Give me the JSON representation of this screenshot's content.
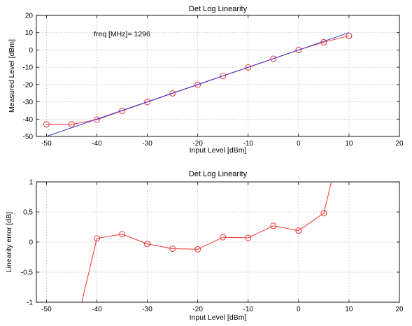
{
  "chart_data": [
    {
      "type": "line",
      "title": "Det Log Linearity",
      "xlabel": "Input Level [dBm]",
      "ylabel": "Measured Level [dBm]",
      "xlim": [
        -52,
        20
      ],
      "ylim": [
        -50,
        20
      ],
      "xticks": [
        -50,
        -40,
        -30,
        -20,
        -10,
        0,
        10,
        20
      ],
      "yticks": [
        -50,
        -40,
        -30,
        -20,
        -10,
        0,
        10,
        20
      ],
      "grid": true,
      "annotation": "freq [MHz]= 1296",
      "colors": {
        "measured": "#ee3333",
        "ideal": "#3333dd"
      },
      "series": [
        {
          "marker": "circle",
          "x": [
            -50,
            -45,
            -40,
            -35,
            -30,
            -25,
            -20,
            -15,
            -10,
            -5,
            0,
            5,
            10
          ],
          "y": [
            -43,
            -43,
            -40.3,
            -35.2,
            -30.1,
            -25.1,
            -20.1,
            -15.1,
            -10.1,
            -5.1,
            0,
            4.5,
            8.2
          ]
        },
        {
          "marker": "none",
          "x": [
            -52,
            10
          ],
          "y": [
            -52,
            10
          ]
        }
      ]
    },
    {
      "type": "line",
      "title": "Det Log Linearity",
      "xlabel": "Input Level [dBm]",
      "ylabel": "Linearity error [dB]",
      "xlim": [
        -52,
        20
      ],
      "ylim": [
        -1,
        1
      ],
      "xticks": [
        -50,
        -40,
        -30,
        -20,
        -10,
        0,
        10,
        20
      ],
      "yticks": [
        -1,
        -0.5,
        0,
        0.5,
        1
      ],
      "ytick_labels": [
        "-1",
        "-0,5",
        "0",
        "0,5",
        "1"
      ],
      "grid": true,
      "colors": {
        "measured": "#ee3333"
      },
      "series": [
        {
          "marker": "circle",
          "x": [
            -40,
            -35,
            -30,
            -25,
            -20,
            -15,
            -10,
            -5,
            0,
            5
          ],
          "y": [
            0.06,
            0.13,
            -0.03,
            -0.11,
            -0.12,
            0.08,
            0.07,
            0.27,
            0.19,
            0.48
          ]
        },
        {
          "marker": "none",
          "x": [
            -43,
            -40
          ],
          "y": [
            -1,
            0.06
          ]
        },
        {
          "marker": "none",
          "x": [
            5,
            6.5
          ],
          "y": [
            0.48,
            1
          ]
        }
      ]
    }
  ]
}
